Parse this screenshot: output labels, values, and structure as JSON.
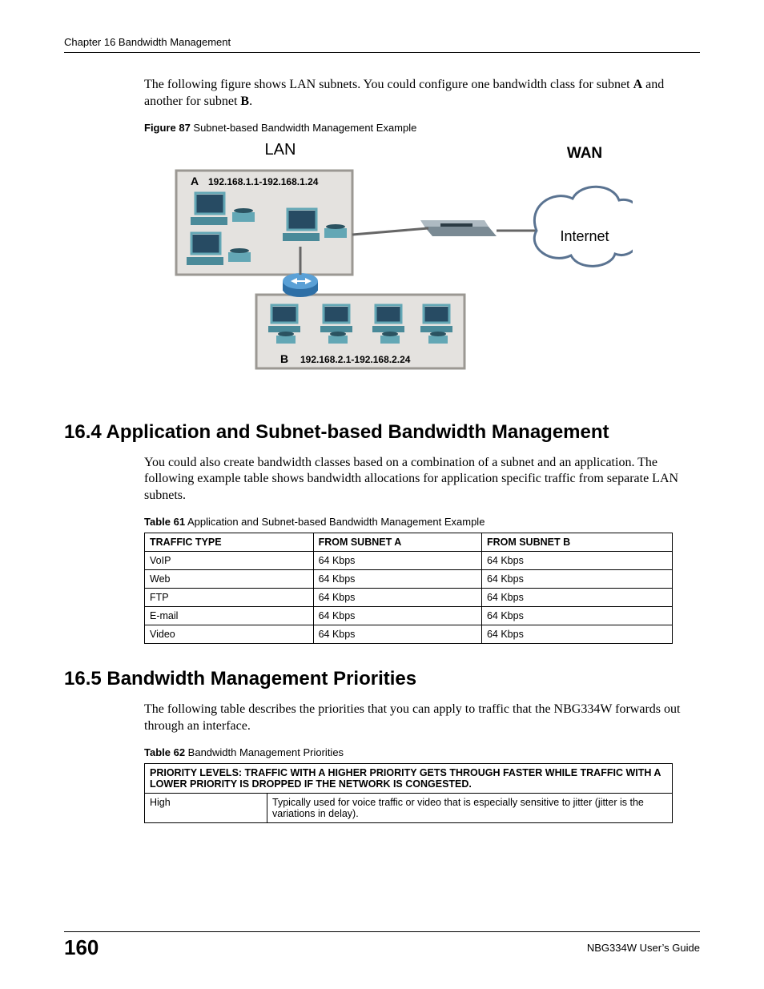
{
  "header": {
    "chapter": "Chapter 16 Bandwidth Management"
  },
  "intro_para": {
    "prefix": "The following figure shows LAN subnets. You could configure one bandwidth class for subnet ",
    "bold1": "A",
    "middle": " and another for subnet ",
    "bold2": "B",
    "suffix": "."
  },
  "figure87": {
    "label_bold": "Figure 87",
    "label_rest": "   Subnet-based Bandwidth Management Example",
    "lan": "LAN",
    "wan": "WAN",
    "A": "A",
    "B": "B",
    "rangeA": "192.168.1.1-192.168.1.24",
    "rangeB": "192.168.2.1-192.168.2.24",
    "internet": "Internet",
    "colors": {
      "panel_fill": "#e4e2df",
      "panel_stroke": "#9b9893",
      "dev_body": "#63a7b5",
      "dev_body2": "#4a8a99",
      "screen": "#274b63",
      "router_body": "#2e6fa6",
      "cloud_stroke": "#5a7391",
      "cloud_fill": "#ffffff",
      "line": "#666666",
      "text": "#000000"
    }
  },
  "section164": {
    "heading": "16.4  Application and Subnet-based Bandwidth Management",
    "para": "You could also create bandwidth classes based on a combination of a subnet and an application. The following example table shows bandwidth allocations for application specific traffic from separate LAN subnets."
  },
  "table61": {
    "label_bold": "Table 61",
    "label_rest": "   Application and Subnet-based Bandwidth Management Example",
    "columns": [
      "TRAFFIC TYPE",
      "FROM SUBNET A",
      "FROM SUBNET B"
    ],
    "rows": [
      [
        "VoIP",
        "64 Kbps",
        "64 Kbps"
      ],
      [
        "Web",
        "64 Kbps",
        "64 Kbps"
      ],
      [
        "FTP",
        "64 Kbps",
        "64 Kbps"
      ],
      [
        "E-mail",
        "64 Kbps",
        "64 Kbps"
      ],
      [
        "Video",
        "64 Kbps",
        "64 Kbps"
      ]
    ],
    "col_widths": [
      "210px",
      "210px",
      "240px"
    ]
  },
  "section165": {
    "heading": "16.5  Bandwidth Management Priorities",
    "para": "The following table describes the priorities that you can apply to traffic that the NBG334W forwards out through an interface."
  },
  "table62": {
    "label_bold": "Table 62",
    "label_rest": "   Bandwidth Management Priorities",
    "header": "PRIORITY LEVELS: TRAFFIC WITH A HIGHER PRIORITY GETS THROUGH FASTER WHILE TRAFFIC WITH A LOWER PRIORITY IS DROPPED IF THE NETWORK IS CONGESTED.",
    "row": [
      "High",
      "Typically used for voice traffic or video that is especially sensitive to jitter (jitter is the variations in delay)."
    ],
    "col_widths": [
      "140px",
      "520px"
    ]
  },
  "footer": {
    "page": "160",
    "guide": "NBG334W User’s Guide"
  }
}
